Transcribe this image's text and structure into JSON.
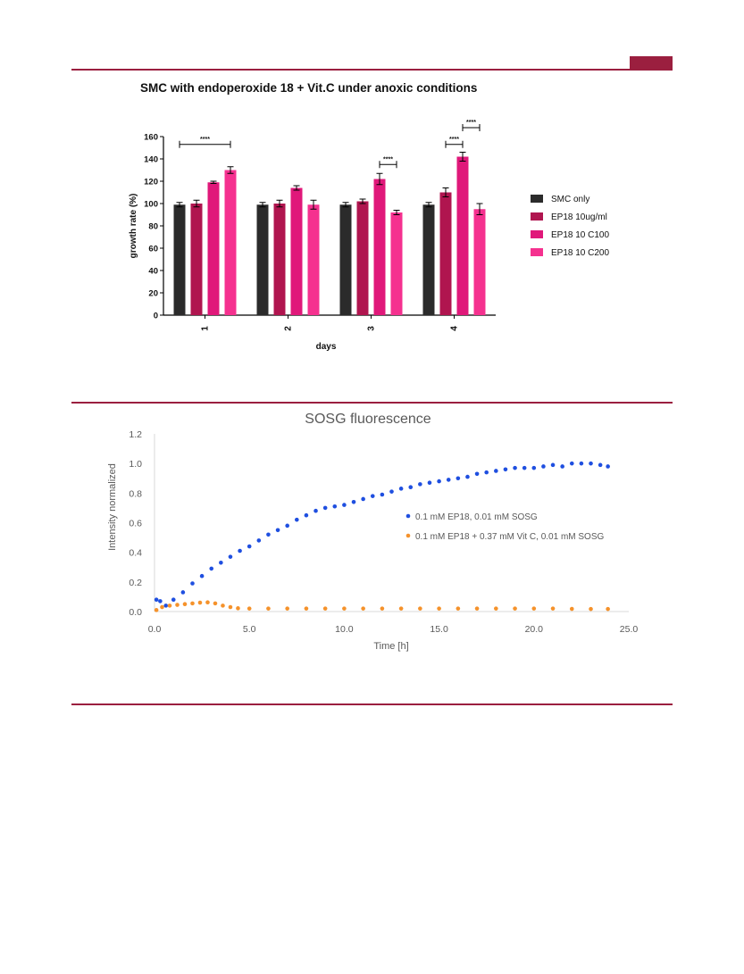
{
  "page": {
    "accent_color": "#9b1f3f"
  },
  "chart_data": [
    {
      "type": "bar",
      "title": "SMC with endoperoxide 18 + Vit.C under anoxic conditions",
      "xlabel": "days",
      "ylabel": "growth rate (%)",
      "categories": [
        "1",
        "2",
        "3",
        "4"
      ],
      "ylim": [
        0,
        160
      ],
      "yticks": [
        "0",
        "20",
        "40",
        "60",
        "80",
        "100",
        "120",
        "140",
        "160"
      ],
      "legend_position": "right",
      "series": [
        {
          "name": "SMC only",
          "color": "#2b2b2b",
          "values": [
            99,
            99,
            99,
            99
          ],
          "errors": [
            2,
            2,
            2,
            2
          ]
        },
        {
          "name": "EP18 10ug/ml",
          "color": "#b0154f",
          "values": [
            100,
            100,
            102,
            110
          ],
          "errors": [
            3,
            3,
            2,
            4
          ]
        },
        {
          "name": "EP18 10 C100",
          "color": "#e0187a",
          "values": [
            119,
            114,
            122,
            142
          ],
          "errors": [
            1,
            2,
            5,
            4
          ]
        },
        {
          "name": "EP18 10 C200",
          "color": "#f5318f",
          "values": [
            130,
            99,
            92,
            95
          ],
          "errors": [
            3,
            4,
            2,
            5
          ]
        }
      ],
      "significance": [
        {
          "label": "****",
          "category": "1",
          "from_series": 0,
          "to_series": 3,
          "y": 153
        },
        {
          "label": "****",
          "category": "3",
          "from_series": 2,
          "to_series": 3,
          "y": 135
        },
        {
          "label": "****",
          "category": "4",
          "from_series": 1,
          "to_series": 2,
          "y": 153
        },
        {
          "label": "****",
          "category": "4",
          "from_series": 2,
          "to_series": 3,
          "y": 168
        }
      ]
    },
    {
      "type": "scatter",
      "title": "SOSG fluorescence",
      "xlabel": "Time [h]",
      "ylabel": "Intensity normalized",
      "xlim": [
        0,
        25
      ],
      "ylim": [
        0,
        1.2
      ],
      "xticks": [
        "0.0",
        "5.0",
        "10.0",
        "15.0",
        "20.0",
        "25.0"
      ],
      "yticks": [
        "0.0",
        "0.2",
        "0.4",
        "0.6",
        "0.8",
        "1.0",
        "1.2"
      ],
      "legend_position": "center-right",
      "series": [
        {
          "name": "0.1 mM EP18, 0.01 mM SOSG",
          "color": "#1f4fe0",
          "points": [
            [
              0.1,
              0.08
            ],
            [
              0.3,
              0.07
            ],
            [
              0.6,
              0.04
            ],
            [
              1,
              0.08
            ],
            [
              1.5,
              0.13
            ],
            [
              2,
              0.19
            ],
            [
              2.5,
              0.24
            ],
            [
              3,
              0.29
            ],
            [
              3.5,
              0.33
            ],
            [
              4,
              0.37
            ],
            [
              4.5,
              0.41
            ],
            [
              5,
              0.44
            ],
            [
              5.5,
              0.48
            ],
            [
              6,
              0.52
            ],
            [
              6.5,
              0.55
            ],
            [
              7,
              0.58
            ],
            [
              7.5,
              0.62
            ],
            [
              8,
              0.65
            ],
            [
              8.5,
              0.68
            ],
            [
              9,
              0.7
            ],
            [
              9.5,
              0.71
            ],
            [
              10,
              0.72
            ],
            [
              10.5,
              0.74
            ],
            [
              11,
              0.76
            ],
            [
              11.5,
              0.78
            ],
            [
              12,
              0.79
            ],
            [
              12.5,
              0.81
            ],
            [
              13,
              0.83
            ],
            [
              13.5,
              0.84
            ],
            [
              14,
              0.86
            ],
            [
              14.5,
              0.87
            ],
            [
              15,
              0.88
            ],
            [
              15.5,
              0.89
            ],
            [
              16,
              0.9
            ],
            [
              16.5,
              0.91
            ],
            [
              17,
              0.93
            ],
            [
              17.5,
              0.94
            ],
            [
              18,
              0.95
            ],
            [
              18.5,
              0.96
            ],
            [
              19,
              0.97
            ],
            [
              19.5,
              0.97
            ],
            [
              20,
              0.97
            ],
            [
              20.5,
              0.98
            ],
            [
              21,
              0.99
            ],
            [
              21.5,
              0.98
            ],
            [
              22,
              1.0
            ],
            [
              22.5,
              1.0
            ],
            [
              23,
              1.0
            ],
            [
              23.5,
              0.99
            ],
            [
              23.9,
              0.98
            ]
          ]
        },
        {
          "name": "0.1 mM EP18 + 0.37 mM Vit C, 0.01 mM SOSG",
          "color": "#f5922b",
          "points": [
            [
              0.1,
              0.01
            ],
            [
              0.4,
              0.03
            ],
            [
              0.8,
              0.04
            ],
            [
              1.2,
              0.045
            ],
            [
              1.6,
              0.05
            ],
            [
              2,
              0.055
            ],
            [
              2.4,
              0.06
            ],
            [
              2.8,
              0.062
            ],
            [
              3.2,
              0.055
            ],
            [
              3.6,
              0.04
            ],
            [
              4,
              0.03
            ],
            [
              4.4,
              0.022
            ],
            [
              5,
              0.02
            ],
            [
              6,
              0.02
            ],
            [
              7,
              0.02
            ],
            [
              8,
              0.02
            ],
            [
              9,
              0.02
            ],
            [
              10,
              0.02
            ],
            [
              11,
              0.02
            ],
            [
              12,
              0.02
            ],
            [
              13,
              0.02
            ],
            [
              14,
              0.02
            ],
            [
              15,
              0.02
            ],
            [
              16,
              0.02
            ],
            [
              17,
              0.02
            ],
            [
              18,
              0.02
            ],
            [
              19,
              0.02
            ],
            [
              20,
              0.02
            ],
            [
              21,
              0.02
            ],
            [
              22,
              0.018
            ],
            [
              23,
              0.017
            ],
            [
              23.9,
              0.017
            ]
          ]
        }
      ]
    }
  ]
}
